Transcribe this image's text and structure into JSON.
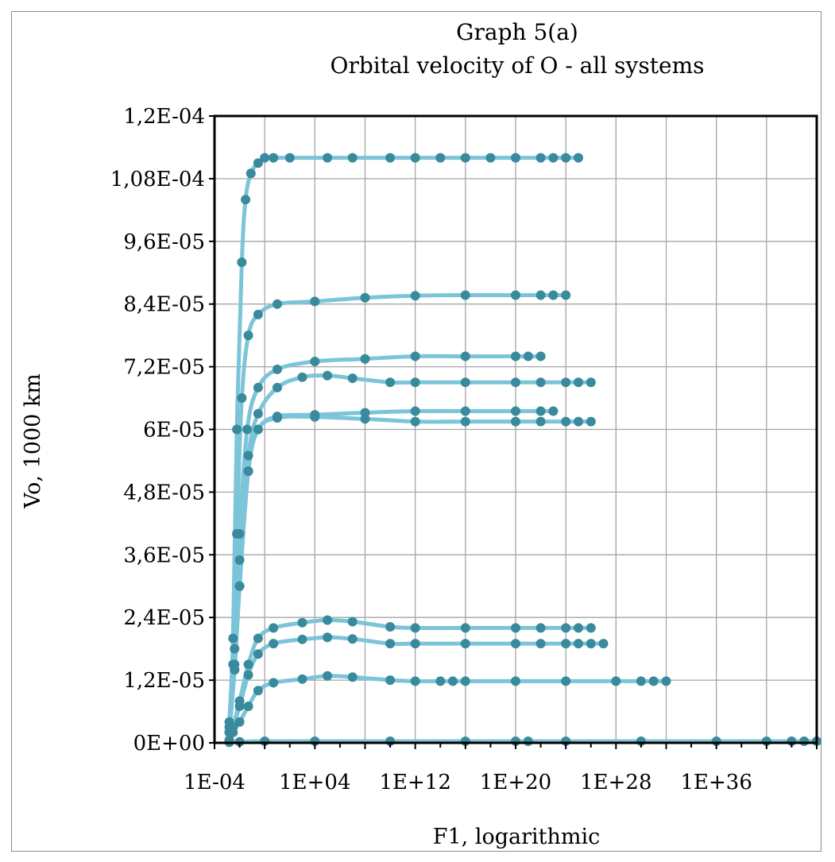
{
  "chart_data": {
    "type": "scatter",
    "title": "Graph 5(a)",
    "subtitle": "Orbital velocity of O - all systems",
    "xlabel": "F1, logarithmic",
    "ylabel": "Vo, 1000 km",
    "x_scale": "log",
    "xlim": [
      0.0001,
      1e+44
    ],
    "ylim": [
      0,
      0.00012
    ],
    "y_ticks": [
      0,
      1.2e-05,
      2.4e-05,
      3.6e-05,
      4.8e-05,
      6e-05,
      7.2e-05,
      8.4e-05,
      9.6e-05,
      0.000108,
      0.00012
    ],
    "y_tick_labels": [
      "0E+00",
      "1,2E-05",
      "2,4E-05",
      "3,6E-05",
      "4,8E-05",
      "6E-05",
      "7,2E-05",
      "8,4E-05",
      "9,6E-05",
      "1,08E-04",
      "1,2E-04"
    ],
    "x_ticks": [
      0.0001,
      10000.0,
      1000000000000.0,
      1e+20,
      1e+28,
      1e+36
    ],
    "x_tick_labels": [
      "1E-04",
      "1E+04",
      "1E+12",
      "1E+20",
      "1E+28",
      "1E+36"
    ],
    "grid": true,
    "legend": "none",
    "colors": {
      "line": "#7cc4d8",
      "marker": "#3a8a9e",
      "grid": "#a6a6a6",
      "axis": "#000000"
    },
    "series": [
      {
        "x": [
          0.0015,
          0.003,
          0.006,
          0.015,
          0.03,
          0.08,
          0.3,
          1,
          5,
          100.0,
          100000.0,
          10000000.0,
          10000000000.0,
          1000000000000.0,
          100000000000000.0,
          1e+16,
          1e+18,
          1e+20,
          1e+22,
          1e+23,
          1e+24,
          1e+25
        ],
        "y": [
          4e-06,
          2e-05,
          6e-05,
          9.2e-05,
          0.000104,
          0.000109,
          0.000111,
          0.000112,
          0.000112,
          0.000112,
          0.000112,
          0.000112,
          0.000112,
          0.000112,
          0.000112,
          0.000112,
          0.000112,
          0.000112,
          0.000112,
          0.000112,
          0.000112,
          0.000112
        ]
      },
      {
        "x": [
          0.0015,
          0.003,
          0.006,
          0.015,
          0.05,
          0.3,
          10,
          10000.0,
          100000000.0,
          1000000000000.0,
          1e+16,
          1e+20,
          1e+22,
          1e+23,
          1e+24
        ],
        "y": [
          3e-06,
          1.5e-05,
          4e-05,
          6.6e-05,
          7.8e-05,
          8.2e-05,
          8.4e-05,
          8.45e-05,
          8.52e-05,
          8.56e-05,
          8.57e-05,
          8.57e-05,
          8.57e-05,
          8.57e-05,
          8.57e-05
        ]
      },
      {
        "x": [
          0.0015,
          0.004,
          0.01,
          0.04,
          0.3,
          10,
          10000.0,
          100000000.0,
          1000000000000.0,
          1e+16,
          1e+20,
          1e+21,
          1e+22
        ],
        "y": [
          3e-06,
          1.8e-05,
          4e-05,
          6e-05,
          6.8e-05,
          7.15e-05,
          7.3e-05,
          7.35e-05,
          7.4e-05,
          7.4e-05,
          7.4e-05,
          7.4e-05,
          7.4e-05
        ]
      },
      {
        "x": [
          0.0015,
          0.004,
          0.01,
          0.05,
          0.3,
          10,
          1000.0,
          100000.0,
          10000000.0,
          10000000000.0,
          1000000000000.0,
          1e+16,
          1e+20,
          1e+22,
          1e+24,
          1e+25,
          1e+26
        ],
        "y": [
          2e-06,
          1.5e-05,
          3.5e-05,
          5.5e-05,
          6.3e-05,
          6.8e-05,
          7e-05,
          7.03e-05,
          6.98e-05,
          6.9e-05,
          6.9e-05,
          6.9e-05,
          6.9e-05,
          6.9e-05,
          6.9e-05,
          6.9e-05,
          6.9e-05
        ]
      },
      {
        "x": [
          0.0015,
          0.004,
          0.01,
          0.05,
          0.3,
          10,
          10000.0,
          100000000.0,
          1000000000000.0,
          1e+16,
          1e+20,
          1e+22,
          1e+23
        ],
        "y": [
          2e-06,
          1.4e-05,
          3e-05,
          5.2e-05,
          6e-05,
          6.25e-05,
          6.28e-05,
          6.32e-05,
          6.35e-05,
          6.35e-05,
          6.35e-05,
          6.35e-05,
          6.35e-05
        ]
      },
      {
        "x": [
          0.0015,
          0.004,
          0.01,
          0.05,
          0.3,
          10,
          10000.0,
          100000000.0,
          1000000000000.0,
          1e+16,
          1e+20,
          1e+22,
          1e+24,
          1e+25,
          1e+26
        ],
        "y": [
          2e-06,
          1.4e-05,
          3e-05,
          5.2e-05,
          6e-05,
          6.22e-05,
          6.24e-05,
          6.2e-05,
          6.15e-05,
          6.15e-05,
          6.15e-05,
          6.15e-05,
          6.15e-05,
          6.15e-05,
          6.15e-05
        ]
      },
      {
        "x": [
          0.0015,
          0.003,
          0.01,
          0.05,
          0.3,
          5,
          1000.0,
          100000.0,
          10000000.0,
          10000000000.0,
          1000000000000.0,
          1e+16,
          1e+20,
          1e+22,
          1e+24,
          1e+25,
          1e+26
        ],
        "y": [
          5e-07,
          3e-06,
          8e-06,
          1.5e-05,
          2e-05,
          2.2e-05,
          2.3e-05,
          2.35e-05,
          2.32e-05,
          2.22e-05,
          2.2e-05,
          2.2e-05,
          2.2e-05,
          2.2e-05,
          2.2e-05,
          2.2e-05,
          2.2e-05
        ]
      },
      {
        "x": [
          0.0015,
          0.003,
          0.01,
          0.05,
          0.3,
          5,
          1000.0,
          100000.0,
          10000000.0,
          10000000000.0,
          1000000000000.0,
          1e+16,
          1e+20,
          1e+22,
          1e+24,
          1e+25,
          1e+26,
          1e+27
        ],
        "y": [
          5e-07,
          3e-06,
          7e-06,
          1.3e-05,
          1.7e-05,
          1.9e-05,
          1.98e-05,
          2.02e-05,
          1.99e-05,
          1.9e-05,
          1.9e-05,
          1.9e-05,
          1.9e-05,
          1.9e-05,
          1.9e-05,
          1.9e-05,
          1.9e-05,
          1.9e-05
        ]
      },
      {
        "x": [
          0.0015,
          0.003,
          0.01,
          0.05,
          0.3,
          5,
          1000.0,
          100000.0,
          10000000.0,
          10000000000.0,
          1000000000000.0,
          100000000000000.0,
          1000000000000000.0,
          1e+16,
          1e+20,
          1e+24,
          1e+28,
          1e+30,
          1e+31,
          1e+32
        ],
        "y": [
          3e-07,
          2e-06,
          4e-06,
          7e-06,
          1e-05,
          1.15e-05,
          1.22e-05,
          1.28e-05,
          1.26e-05,
          1.2e-05,
          1.18e-05,
          1.18e-05,
          1.18e-05,
          1.18e-05,
          1.18e-05,
          1.18e-05,
          1.18e-05,
          1.18e-05,
          1.18e-05,
          1.18e-05
        ]
      },
      {
        "x": [
          0.0015,
          0.01,
          1,
          10000.0,
          10000000000.0,
          1e+16,
          1e+20,
          1e+21,
          1e+24,
          1e+30,
          1e+36,
          1e+40,
          1e+42,
          1e+43,
          1e+44
        ],
        "y": [
          1e-07,
          2e-07,
          3e-07,
          3e-07,
          3e-07,
          3e-07,
          3e-07,
          3e-07,
          3e-07,
          3e-07,
          3e-07,
          3e-07,
          3e-07,
          3e-07,
          3e-07
        ]
      }
    ]
  }
}
